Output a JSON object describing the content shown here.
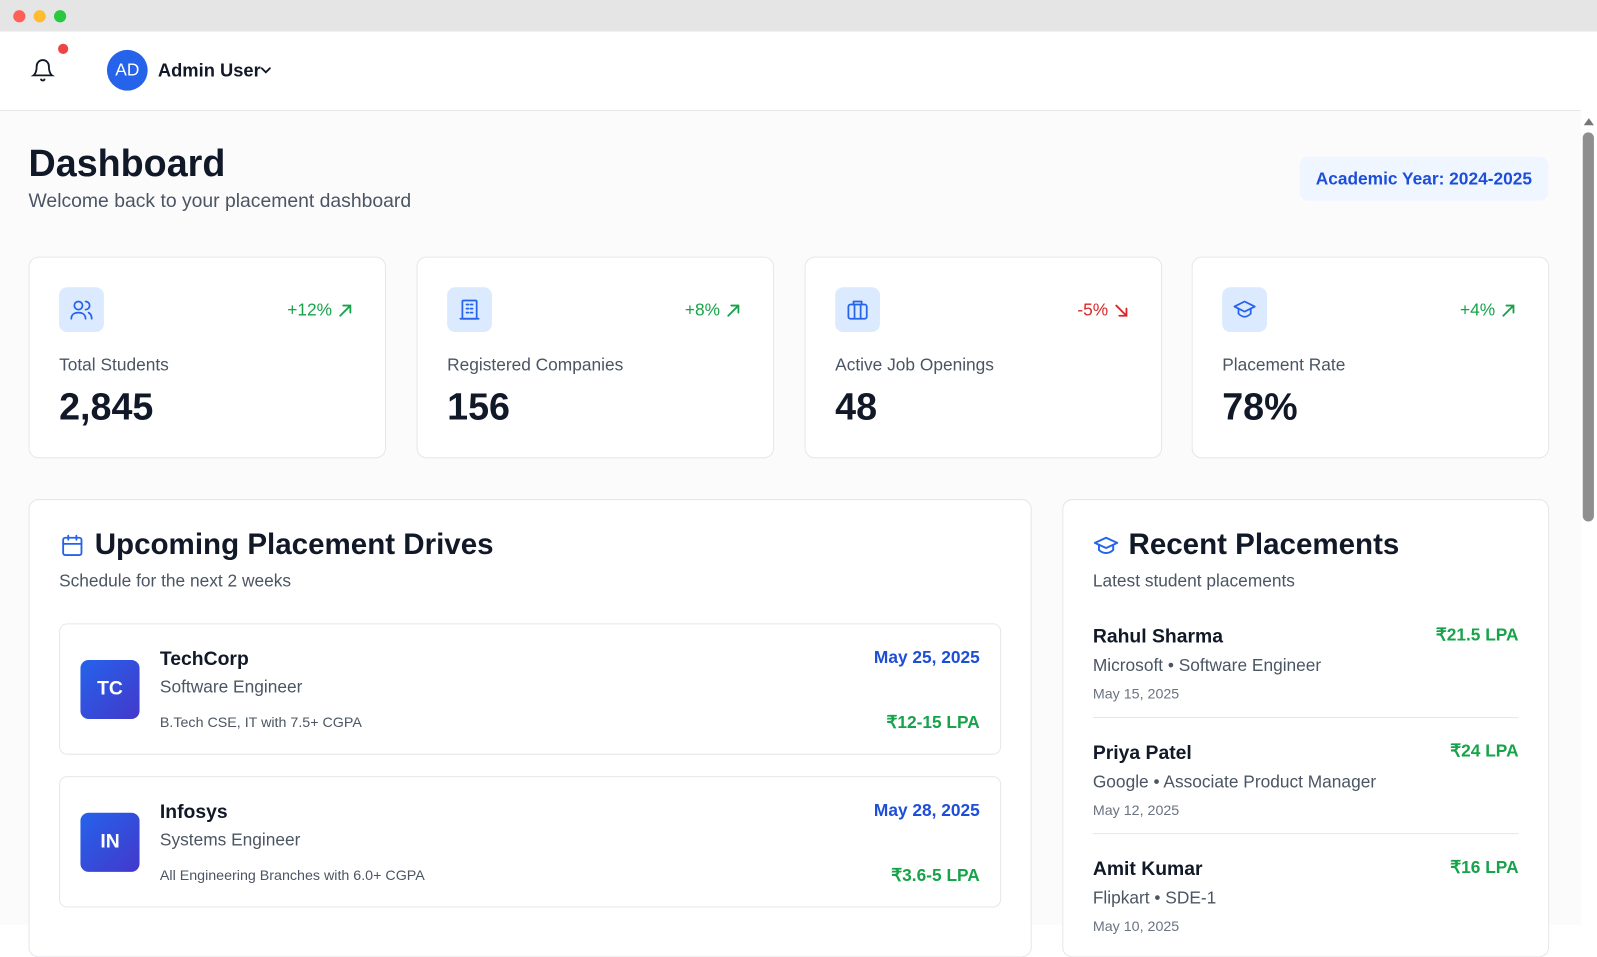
{
  "header": {
    "avatar_initials": "AD",
    "user_name": "Admin User"
  },
  "page": {
    "title": "Dashboard",
    "subtitle": "Welcome back to your placement dashboard",
    "academic_year": "Academic Year: 2024-2025"
  },
  "stats": [
    {
      "label": "Total Students",
      "value": "2,845",
      "change": "+12%",
      "trend": "up"
    },
    {
      "label": "Registered Companies",
      "value": "156",
      "change": "+8%",
      "trend": "up"
    },
    {
      "label": "Active Job Openings",
      "value": "48",
      "change": "-5%",
      "trend": "down"
    },
    {
      "label": "Placement Rate",
      "value": "78%",
      "change": "+4%",
      "trend": "up"
    }
  ],
  "drives": {
    "title": "Upcoming Placement Drives",
    "subtitle": "Schedule for the next 2 weeks",
    "items": [
      {
        "initials": "TC",
        "company": "TechCorp",
        "role": "Software Engineer",
        "eligibility": "B.Tech CSE, IT with 7.5+ CGPA",
        "date": "May 25, 2025",
        "package": "₹12-15 LPA"
      },
      {
        "initials": "IN",
        "company": "Infosys",
        "role": "Systems Engineer",
        "eligibility": "All Engineering Branches with 6.0+ CGPA",
        "date": "May 28, 2025",
        "package": "₹3.6-5 LPA"
      }
    ]
  },
  "placements": {
    "title": "Recent Placements",
    "subtitle": "Latest student placements",
    "items": [
      {
        "name": "Rahul Sharma",
        "detail": "Microsoft • Software Engineer",
        "date": "May 15, 2025",
        "package": "₹21.5 LPA"
      },
      {
        "name": "Priya Patel",
        "detail": "Google • Associate Product Manager",
        "date": "May 12, 2025",
        "package": "₹24 LPA"
      },
      {
        "name": "Amit Kumar",
        "detail": "Flipkart • SDE-1",
        "date": "May 10, 2025",
        "package": "₹16 LPA"
      }
    ]
  }
}
